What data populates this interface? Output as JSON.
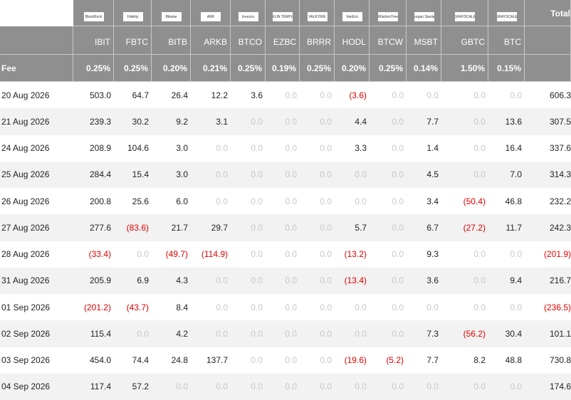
{
  "header": {
    "logos": [
      "BlackRock",
      "Fidelity",
      "Bitwise",
      "ARK",
      "Invesco",
      "FRANKLIN TEMPLETON",
      "VALKYRIE",
      "VanEck",
      "WisdomTree",
      "Morgan Stanley",
      "GRAYSCALE",
      "GRAYSCALE"
    ],
    "total": "Total",
    "tickers": [
      "IBIT",
      "FBTC",
      "BITB",
      "ARKB",
      "BTCO",
      "EZBC",
      "BRRR",
      "HODL",
      "BTCW",
      "MSBT",
      "GBTC",
      "BTC"
    ],
    "fee_label": "Fee",
    "fees": [
      "0.25%",
      "0.25%",
      "0.20%",
      "0.21%",
      "0.25%",
      "0.19%",
      "0.25%",
      "0.20%",
      "0.25%",
      "0.14%",
      "1.50%",
      "0.15%"
    ]
  },
  "table": {
    "rows": [
      {
        "date": "20 Aug 2026",
        "cells": [
          "503.0",
          "64.7",
          "26.4",
          "12.2",
          "3.6",
          "0.0",
          "0.0",
          "(3.6)",
          "0.0",
          "0.0",
          "0.0",
          "0.0",
          "606.3"
        ]
      },
      {
        "date": "21 Aug 2026",
        "cells": [
          "239.3",
          "30.2",
          "9.2",
          "3.1",
          "0.0",
          "0.0",
          "0.0",
          "4.4",
          "0.0",
          "7.7",
          "0.0",
          "13.6",
          "307.5"
        ]
      },
      {
        "date": "24 Aug 2026",
        "cells": [
          "208.9",
          "104.6",
          "3.0",
          "0.0",
          "0.0",
          "0.0",
          "0.0",
          "3.3",
          "0.0",
          "1.4",
          "0.0",
          "16.4",
          "337.6"
        ]
      },
      {
        "date": "25 Aug 2026",
        "cells": [
          "284.4",
          "15.4",
          "3.0",
          "0.0",
          "0.0",
          "0.0",
          "0.0",
          "0.0",
          "0.0",
          "4.5",
          "0.0",
          "7.0",
          "314.3"
        ]
      },
      {
        "date": "26 Aug 2026",
        "cells": [
          "200.8",
          "25.6",
          "6.0",
          "0.0",
          "0.0",
          "0.0",
          "0.0",
          "0.0",
          "0.0",
          "3.4",
          "(50.4)",
          "46.8",
          "232.2"
        ]
      },
      {
        "date": "27 Aug 2026",
        "cells": [
          "277.6",
          "(83.6)",
          "21.7",
          "29.7",
          "0.0",
          "0.0",
          "0.0",
          "5.7",
          "0.0",
          "6.7",
          "(27.2)",
          "11.7",
          "242.3"
        ]
      },
      {
        "date": "28 Aug 2026",
        "cells": [
          "(33.4)",
          "0.0",
          "(49.7)",
          "(114.9)",
          "0.0",
          "0.0",
          "0.0",
          "(13.2)",
          "0.0",
          "9.3",
          "0.0",
          "0.0",
          "(201.9)"
        ]
      },
      {
        "date": "31 Aug 2026",
        "cells": [
          "205.9",
          "6.9",
          "4.3",
          "0.0",
          "0.0",
          "0.0",
          "0.0",
          "(13.4)",
          "0.0",
          "3.6",
          "0.0",
          "9.4",
          "216.7"
        ]
      },
      {
        "date": "01 Sep 2026",
        "cells": [
          "(201.2)",
          "(43.7)",
          "8.4",
          "0.0",
          "0.0",
          "0.0",
          "0.0",
          "0.0",
          "0.0",
          "0.0",
          "0.0",
          "0.0",
          "(236.5)"
        ]
      },
      {
        "date": "02 Sep 2026",
        "cells": [
          "115.4",
          "0.0",
          "4.2",
          "0.0",
          "0.0",
          "0.0",
          "0.0",
          "0.0",
          "0.0",
          "7.3",
          "(56.2)",
          "30.4",
          "101.1"
        ]
      },
      {
        "date": "03 Sep 2026",
        "cells": [
          "454.0",
          "74.4",
          "24.8",
          "137.7",
          "0.0",
          "0.0",
          "0.0",
          "(19.6)",
          "(5.2)",
          "7.7",
          "8.2",
          "48.8",
          "730.8"
        ]
      },
      {
        "date": "04 Sep 2026",
        "cells": [
          "117.4",
          "57.2",
          "0.0",
          "0.0",
          "0.0",
          "0.0",
          "0.0",
          "0.0",
          "0.0",
          "0.0",
          "0.0",
          "0.0",
          "174.6"
        ]
      }
    ]
  }
}
